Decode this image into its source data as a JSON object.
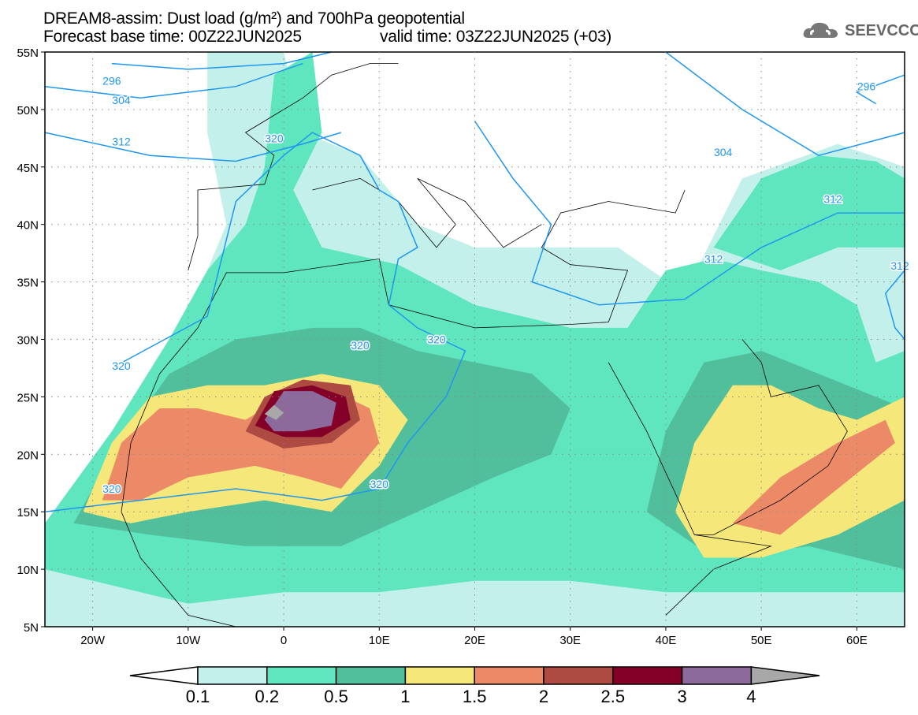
{
  "header": {
    "title": "DREAM8-assim: Dust load (g/m²) and 700hPa geopotential",
    "base_time": "Forecast base time: 00Z22JUN2025",
    "valid_time": "valid time: 03Z22JUN2025 (+03)"
  },
  "logo": {
    "text": "SEEVCCC",
    "icon": "cloud-icon"
  },
  "axes": {
    "lat_labels": [
      "55N",
      "50N",
      "45N",
      "40N",
      "35N",
      "30N",
      "25N",
      "20N",
      "15N",
      "10N",
      "5N"
    ],
    "lon_labels": [
      "20W",
      "10W",
      "0",
      "10E",
      "20E",
      "30E",
      "40E",
      "50E",
      "60E"
    ]
  },
  "contour_labels": [
    "296",
    "304",
    "312",
    "320",
    "320",
    "296",
    "304",
    "312",
    "312",
    "312",
    "320",
    "320",
    "320",
    "320"
  ],
  "colorbar": {
    "ticks": [
      "0.1",
      "0.2",
      "0.5",
      "1",
      "1.5",
      "2",
      "2.5",
      "3",
      "4"
    ],
    "colors": [
      "#c3f0ea",
      "#5fe6bf",
      "#52bf9c",
      "#f5e77a",
      "#ec8a68",
      "#ad4a42",
      "#840029",
      "#8d6a9c"
    ],
    "over": "#a8a8a8",
    "contour_color": "#1e96f0"
  }
}
